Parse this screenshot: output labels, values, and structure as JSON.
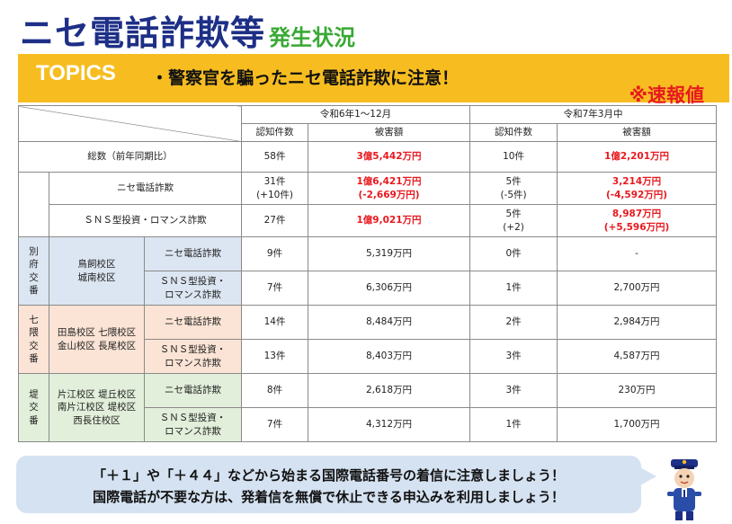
{
  "title": {
    "main": "ニセ電話詐欺等",
    "sub": "発生状況"
  },
  "topics": {
    "label": "TOPICS",
    "text": "・警察官を騙ったニセ電話詐欺に注意！",
    "flash": "※速報値"
  },
  "table": {
    "period1": "令和6年1～12月",
    "period2": "令和7年3月中",
    "col_count": "認知件数",
    "col_damage": "被害額",
    "total": {
      "label": "総数（前年同期比）",
      "p1_count": "58件",
      "p1_damage": "3億5,442万円",
      "p2_count": "10件",
      "p2_damage": "1億2,201万円"
    },
    "nise": {
      "label": "ニセ電話詐欺",
      "p1_count_1": "31件",
      "p1_count_2": "(+10件)",
      "p1_damage_1": "1億6,421万円",
      "p1_damage_2": "(-2,669万円)",
      "p2_count_1": "5件",
      "p2_count_2": "(-5件)",
      "p2_damage_1": "3,214万円",
      "p2_damage_2": "(-4,592万円)"
    },
    "sns": {
      "label": "ＳＮＳ型投資・ロマンス詐欺",
      "p1_count": "27件",
      "p1_damage": "1億9,021万円",
      "p2_count_1": "5件",
      "p2_count_2": "(+2)",
      "p2_damage_1": "8,987万円",
      "p2_damage_2": "(+5,596万円)"
    },
    "type_nise": "ニセ電話詐欺",
    "type_sns_1": "ＳＮＳ型投資・",
    "type_sns_2": "ロマンス詐欺",
    "stations": [
      {
        "name": [
          "別",
          "府",
          "交",
          "番"
        ],
        "schools": [
          "鳥飼校区",
          "城南校区"
        ],
        "nise": {
          "p1_count": "9件",
          "p1_damage": "5,319万円",
          "p2_count": "0件",
          "p2_damage": "-"
        },
        "sns": {
          "p1_count": "7件",
          "p1_damage": "6,306万円",
          "p2_count": "1件",
          "p2_damage": "2,700万円"
        }
      },
      {
        "name": [
          "七",
          "隈",
          "交",
          "番"
        ],
        "schools": [
          "田島校区 七隈校区",
          "金山校区 長尾校区"
        ],
        "nise": {
          "p1_count": "14件",
          "p1_damage": "8,484万円",
          "p2_count": "2件",
          "p2_damage": "2,984万円"
        },
        "sns": {
          "p1_count": "13件",
          "p1_damage": "8,403万円",
          "p2_count": "3件",
          "p2_damage": "4,587万円"
        }
      },
      {
        "name": [
          "堤",
          "交",
          "番"
        ],
        "schools": [
          "片江校区 堤丘校区",
          "南片江校区 堤校区",
          "西長住校区"
        ],
        "nise": {
          "p1_count": "8件",
          "p1_damage": "2,618万円",
          "p2_count": "3件",
          "p2_damage": "230万円"
        },
        "sns": {
          "p1_count": "7件",
          "p1_damage": "4,312万円",
          "p2_count": "1件",
          "p2_damage": "1,700万円"
        }
      }
    ]
  },
  "notice": {
    "line1": "「＋１」や「＋４４」などから始まる国際電話番号の着信に注意しましょう！",
    "line2": "国際電話が不要な方は、発着信を無償で休止できる申込みを利用しましょう！"
  },
  "colors": {
    "title": "#1d2f86",
    "subtitle": "#39a935",
    "topics_bar": "#f7bd20",
    "alert": "#e8191f"
  },
  "icons": {
    "mascot": "police-mascot-icon"
  }
}
